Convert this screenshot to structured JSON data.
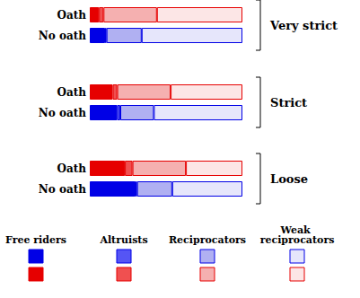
{
  "chart_data": {
    "type": "bar",
    "orientation": "horizontal",
    "stacked": true,
    "tick_labels": false,
    "grid": false,
    "legend": "bottom",
    "categories": [
      "Oath",
      "No oath",
      "Oath",
      "No oath",
      "Oath",
      "No oath"
    ],
    "groups": [
      "Very strict",
      "Strict",
      "Loose"
    ],
    "xlim": [
      0,
      100
    ],
    "series": [
      {
        "name": "Free riders",
        "colors": [
          "#e60000",
          "#0000e6",
          "#e60000",
          "#0000e6",
          "#e60000",
          "#0000e6"
        ],
        "values": [
          6,
          10,
          15,
          18,
          23,
          30
        ]
      },
      {
        "name": "Altruists",
        "colors": [
          "#f05050",
          "#5555f5",
          "#f05050",
          "#5555f5",
          "#f05050",
          "#5555f5"
        ],
        "values": [
          3,
          1,
          3,
          2,
          5,
          1
        ]
      },
      {
        "name": "Reciprocators",
        "colors": [
          "#f5b0b0",
          "#b0b0f2",
          "#f5b0b0",
          "#b0b0f2",
          "#f5b0b0",
          "#b0b0f2"
        ],
        "values": [
          35,
          23,
          35,
          22,
          35,
          23
        ]
      },
      {
        "name": "Weak reciprocators",
        "colors": [
          "#fce6e6",
          "#e6e6fb",
          "#fce6e6",
          "#e6e6fb",
          "#fce6e6",
          "#e6e6fb"
        ],
        "values": [
          56,
          66,
          47,
          58,
          37,
          46
        ]
      }
    ]
  }
}
